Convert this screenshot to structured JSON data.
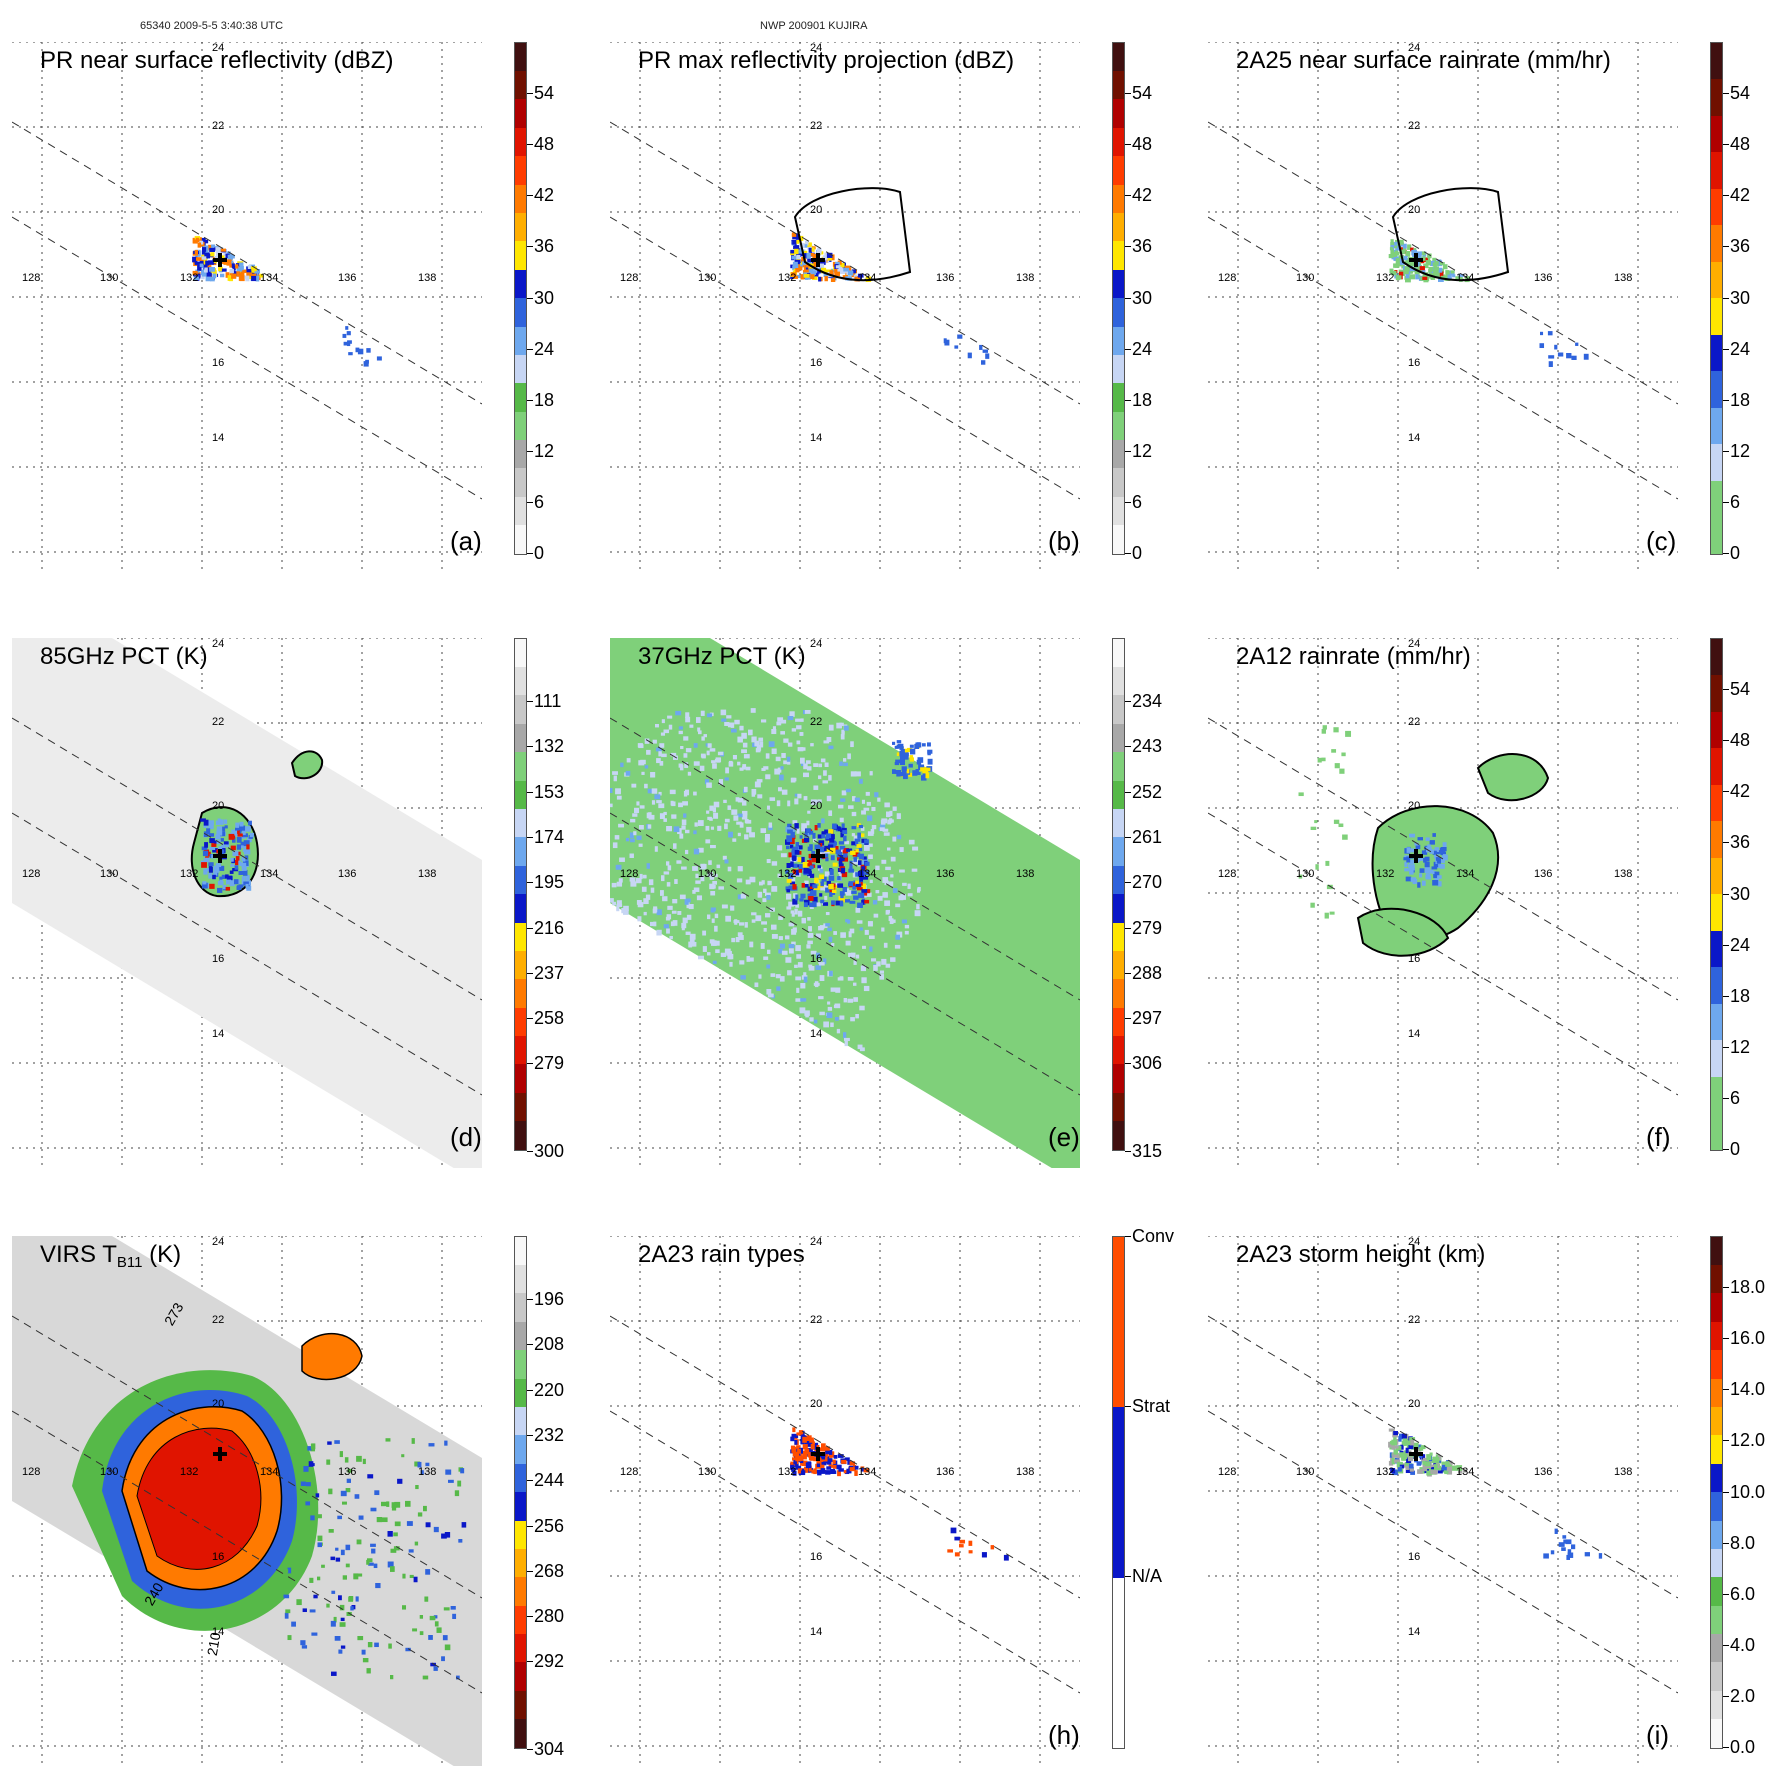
{
  "header": {
    "orbit_time": "65340 2009-5-5 3:40:38 UTC",
    "storm": "NWP 200901 KUJIRA"
  },
  "lon_labels": [
    "128",
    "130",
    "132",
    "134",
    "136",
    "138"
  ],
  "lat_labels": [
    "24",
    "22",
    "20",
    "16",
    "14"
  ],
  "panels": [
    {
      "id": "a",
      "title": "PR near surface reflectivity (dBZ)",
      "label": "(a)",
      "product": "pr_ns",
      "colors": [
        "#f8f8f8",
        "#e0e0e0",
        "#c8c8c8",
        "#a8a8a8",
        "#7fd07a",
        "#56b948",
        "#c7d6f4",
        "#6ea8ee",
        "#2f63dc",
        "#0a17c8",
        "#ffe600",
        "#ffae00",
        "#ff7a00",
        "#ff3c00",
        "#e01400",
        "#b00000",
        "#701000",
        "#401010"
      ],
      "ticks": [
        "0",
        "6",
        "12",
        "18",
        "24",
        "30",
        "36",
        "42",
        "48",
        "54"
      ]
    },
    {
      "id": "b",
      "title": "PR max reflectivity projection (dBZ)",
      "label": "(b)",
      "product": "pr_max",
      "colors": [
        "#f8f8f8",
        "#e0e0e0",
        "#c8c8c8",
        "#a8a8a8",
        "#7fd07a",
        "#56b948",
        "#c7d6f4",
        "#6ea8ee",
        "#2f63dc",
        "#0a17c8",
        "#ffe600",
        "#ffae00",
        "#ff7a00",
        "#ff3c00",
        "#e01400",
        "#b00000",
        "#701000",
        "#401010"
      ],
      "ticks": [
        "0",
        "6",
        "12",
        "18",
        "24",
        "30",
        "36",
        "42",
        "48",
        "54"
      ]
    },
    {
      "id": "c",
      "title": "2A25 near surface rainrate (mm/hr)",
      "label": "(c)",
      "product": "rain_2a25",
      "colors": [
        "#7fd07a",
        "#7fd07a",
        "#c7d6f4",
        "#6ea8ee",
        "#2f63dc",
        "#0a17c8",
        "#ffe600",
        "#ffae00",
        "#ff7a00",
        "#ff3c00",
        "#e01400",
        "#b00000",
        "#701000",
        "#401010"
      ],
      "ticks": [
        "0",
        "6",
        "12",
        "18",
        "24",
        "30",
        "36",
        "42",
        "48",
        "54"
      ]
    },
    {
      "id": "d",
      "title": "85GHz PCT (K)",
      "label": "(d)",
      "product": "pct85",
      "colors": [
        "#401010",
        "#701000",
        "#b00000",
        "#e01400",
        "#ff3c00",
        "#ff7a00",
        "#ffae00",
        "#ffe600",
        "#0a17c8",
        "#2f63dc",
        "#6ea8ee",
        "#c7d6f4",
        "#56b948",
        "#7fd07a",
        "#a8a8a8",
        "#c8c8c8",
        "#e0e0e0",
        "#f8f8f8"
      ],
      "ticks": [
        "111",
        "132",
        "153",
        "174",
        "195",
        "216",
        "237",
        "258",
        "279",
        "300"
      ]
    },
    {
      "id": "e",
      "title": "37GHz PCT (K)",
      "label": "(e)",
      "product": "pct37",
      "colors": [
        "#401010",
        "#701000",
        "#b00000",
        "#e01400",
        "#ff3c00",
        "#ff7a00",
        "#ffae00",
        "#ffe600",
        "#0a17c8",
        "#2f63dc",
        "#6ea8ee",
        "#c7d6f4",
        "#56b948",
        "#7fd07a",
        "#a8a8a8",
        "#c8c8c8",
        "#e0e0e0",
        "#f8f8f8"
      ],
      "ticks": [
        "234",
        "243",
        "252",
        "261",
        "270",
        "279",
        "288",
        "297",
        "306",
        "315"
      ]
    },
    {
      "id": "f",
      "title": "2A12 rainrate (mm/hr)",
      "label": "(f)",
      "product": "rain_2a12",
      "colors": [
        "#7fd07a",
        "#7fd07a",
        "#c7d6f4",
        "#6ea8ee",
        "#2f63dc",
        "#0a17c8",
        "#ffe600",
        "#ffae00",
        "#ff7a00",
        "#ff3c00",
        "#e01400",
        "#b00000",
        "#701000",
        "#401010"
      ],
      "ticks": [
        "0",
        "6",
        "12",
        "18",
        "24",
        "30",
        "36",
        "42",
        "48",
        "54"
      ]
    },
    {
      "id": "g",
      "title": "VIRS T",
      "title_sub": "B11",
      "title_tail": " (K)",
      "label": "",
      "product": "virs",
      "colors": [
        "#401010",
        "#701000",
        "#b00000",
        "#e01400",
        "#ff3c00",
        "#ff7a00",
        "#ffae00",
        "#ffe600",
        "#0a17c8",
        "#2f63dc",
        "#6ea8ee",
        "#c7d6f4",
        "#56b948",
        "#7fd07a",
        "#a8a8a8",
        "#c8c8c8",
        "#e0e0e0",
        "#f8f8f8"
      ],
      "ticks": [
        "196",
        "208",
        "220",
        "232",
        "244",
        "256",
        "268",
        "280",
        "292",
        "304"
      ],
      "contour_labels": [
        "273",
        "210",
        "240"
      ]
    },
    {
      "id": "h",
      "title": "2A23 rain types",
      "label": "(h)",
      "product": "raintype",
      "colors": [
        "#ffffff",
        "#ffffff",
        "#0a17c8",
        "#0a17c8",
        "#ff4d00",
        "#ff4d00"
      ],
      "ticks": [
        "N/A",
        "Strat",
        "Conv"
      ]
    },
    {
      "id": "i",
      "title": "2A23 storm height (km)",
      "label": "(i)",
      "product": "height",
      "colors": [
        "#f8f8f8",
        "#e0e0e0",
        "#c8c8c8",
        "#a8a8a8",
        "#7fd07a",
        "#56b948",
        "#c7d6f4",
        "#6ea8ee",
        "#2f63dc",
        "#0a17c8",
        "#ffe600",
        "#ffae00",
        "#ff7a00",
        "#ff3c00",
        "#e01400",
        "#b00000",
        "#701000",
        "#401010"
      ],
      "ticks": [
        "0.0",
        "2.0",
        "4.0",
        "6.0",
        "8.0",
        "10.0",
        "12.0",
        "14.0",
        "16.0",
        "18.0"
      ]
    }
  ]
}
